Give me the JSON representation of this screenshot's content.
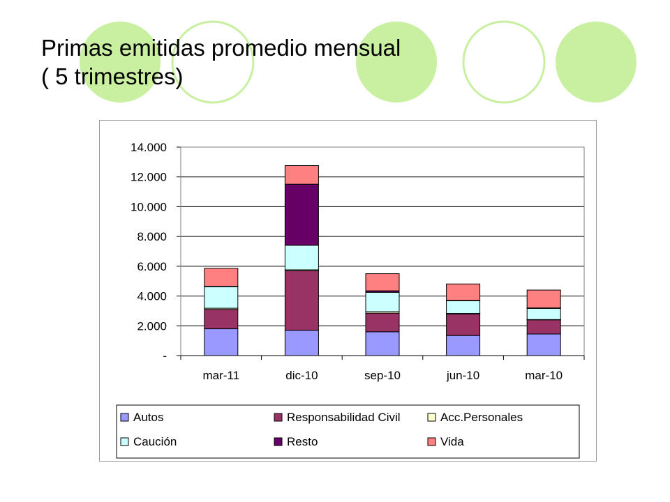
{
  "slide": {
    "title_line1": "Primas emitidas promedio mensual",
    "title_line2": "( 5 trimestres)"
  },
  "decor": {
    "circle_color": "#c8f0a0",
    "ring_color": "#c8f0a0"
  },
  "chart_data": {
    "type": "bar",
    "stacked": true,
    "categories": [
      "mar-11",
      "dic-10",
      "sep-10",
      "jun-10",
      "mar-10"
    ],
    "ylim": [
      0,
      14000
    ],
    "yticks": [
      0,
      2000,
      4000,
      6000,
      8000,
      10000,
      12000,
      14000
    ],
    "ytick_labels": [
      "-",
      "2.000",
      "4.000",
      "6.000",
      "8.000",
      "10.000",
      "12.000",
      "14.000"
    ],
    "grid": true,
    "legend_position": "bottom",
    "series": [
      {
        "name": "Autos",
        "color": "#9999ff",
        "values": [
          1800,
          1700,
          1600,
          1350,
          1450
        ]
      },
      {
        "name": "Responsabilidad Civil",
        "color": "#993366",
        "values": [
          1300,
          4000,
          1250,
          1450,
          950
        ]
      },
      {
        "name": "Acc.Personales",
        "color": "#ffffcc",
        "values": [
          80,
          60,
          100,
          30,
          20
        ]
      },
      {
        "name": "Caución",
        "color": "#ccffff",
        "values": [
          1450,
          1650,
          1300,
          850,
          750
        ]
      },
      {
        "name": "Resto",
        "color": "#660066",
        "values": [
          30,
          4100,
          100,
          30,
          30
        ]
      },
      {
        "name": "Vida",
        "color": "#ff8080",
        "values": [
          1200,
          1250,
          1150,
          1100,
          1200
        ]
      }
    ]
  }
}
